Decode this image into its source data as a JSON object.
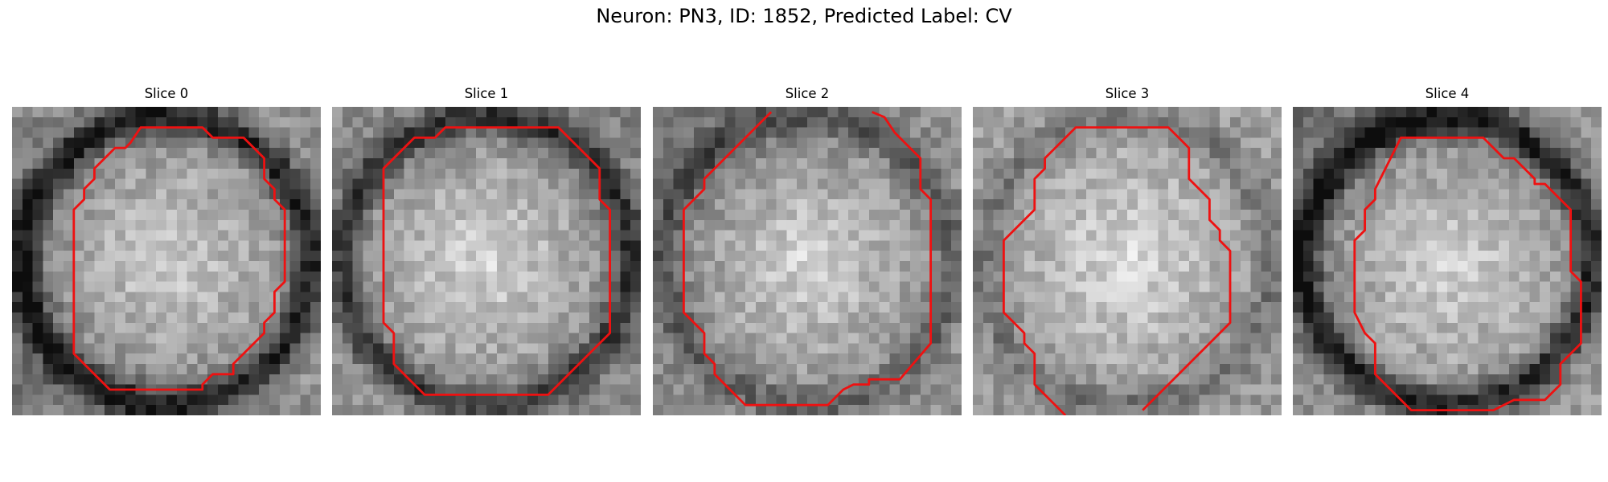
{
  "figure": {
    "title": "Neuron: PN3, ID: 1852, Predicted Label: CV"
  },
  "colors": {
    "contour": "#ee1111"
  },
  "panels": [
    {
      "title": "Slice 0",
      "darkness": {
        "top_left": 0.35,
        "top_right": 0.25,
        "bottom_left": 0.45,
        "bottom_right": 0.25,
        "ring": 0.45,
        "center": 0.1
      },
      "contour": [
        [
          12.5,
          2
        ],
        [
          18.5,
          2
        ],
        [
          19.5,
          3
        ],
        [
          22.5,
          3
        ],
        [
          24.5,
          5
        ],
        [
          24.5,
          7
        ],
        [
          25.5,
          8
        ],
        [
          25.5,
          9
        ],
        [
          26.5,
          10
        ],
        [
          26.5,
          17
        ],
        [
          25.5,
          18
        ],
        [
          25.5,
          20
        ],
        [
          24.5,
          21
        ],
        [
          24.5,
          22
        ],
        [
          21.5,
          25
        ],
        [
          21.5,
          26
        ],
        [
          19.5,
          26
        ],
        [
          18.5,
          27
        ],
        [
          18.5,
          27.5
        ],
        [
          17.5,
          27.5
        ],
        [
          9.5,
          27.5
        ],
        [
          6,
          24
        ],
        [
          6,
          10
        ],
        [
          7,
          9
        ],
        [
          7,
          8
        ],
        [
          8,
          7
        ],
        [
          8,
          6
        ],
        [
          10,
          4
        ],
        [
          11,
          4
        ],
        [
          11.5,
          3.5
        ]
      ],
      "closed": true
    },
    {
      "title": "Slice 1",
      "darkness": {
        "top_left": 0.35,
        "top_right": 0.4,
        "bottom_left": 0.3,
        "bottom_right": 0.35,
        "ring": 0.35,
        "center": 0.05
      },
      "contour": [
        [
          11,
          2
        ],
        [
          22,
          2
        ],
        [
          26,
          6
        ],
        [
          26,
          9
        ],
        [
          27,
          10
        ],
        [
          27,
          22
        ],
        [
          23,
          26
        ],
        [
          22,
          27
        ],
        [
          21,
          28
        ],
        [
          9,
          28
        ],
        [
          6,
          25
        ],
        [
          6,
          22
        ],
        [
          5,
          21
        ],
        [
          5,
          6
        ],
        [
          8,
          3
        ],
        [
          10,
          3
        ]
      ],
      "closed": true
    },
    {
      "title": "Slice 2",
      "darkness": {
        "top_left": 0.55,
        "top_right": 0.3,
        "bottom_left": 0.3,
        "bottom_right": 0.3,
        "ring": 0.2,
        "center": 0.05
      },
      "contour": [
        [
          11.5,
          0.5
        ],
        [
          5,
          7
        ],
        [
          5,
          8
        ],
        [
          3,
          10
        ],
        [
          3,
          20
        ],
        [
          5,
          22
        ],
        [
          5,
          24
        ],
        [
          6,
          25
        ],
        [
          6,
          26
        ],
        [
          9,
          29
        ],
        [
          17,
          29
        ],
        [
          18.5,
          27.5
        ],
        [
          19.5,
          27
        ],
        [
          21,
          27
        ],
        [
          21,
          26.5
        ],
        [
          24,
          26.5
        ],
        [
          27,
          23
        ],
        [
          27,
          9
        ],
        [
          26,
          8
        ],
        [
          26,
          5
        ],
        [
          25,
          4
        ],
        [
          23.5,
          2.5
        ],
        [
          22.5,
          1
        ],
        [
          21.3,
          0.5
        ]
      ],
      "closed": false
    },
    {
      "title": "Slice 3",
      "darkness": {
        "top_left": 0.25,
        "top_right": 0.25,
        "bottom_left": 0.3,
        "bottom_right": 0.3,
        "ring": 0.15,
        "center": 0.02
      },
      "contour": [
        [
          9,
          30
        ],
        [
          6,
          27
        ],
        [
          6,
          24
        ],
        [
          5,
          23
        ],
        [
          5,
          22
        ],
        [
          4,
          21
        ],
        [
          3,
          20
        ],
        [
          3,
          13
        ],
        [
          6,
          10
        ],
        [
          6,
          7
        ],
        [
          7,
          6
        ],
        [
          7,
          5
        ],
        [
          10,
          2
        ],
        [
          19,
          2
        ],
        [
          20,
          3
        ],
        [
          21,
          4
        ],
        [
          21,
          7
        ],
        [
          22,
          8
        ],
        [
          23,
          9
        ],
        [
          23,
          11
        ],
        [
          24,
          12
        ],
        [
          24,
          13
        ],
        [
          25,
          14
        ],
        [
          25,
          21
        ],
        [
          24,
          22
        ],
        [
          21,
          25
        ],
        [
          19,
          27
        ],
        [
          16.5,
          29.5
        ]
      ],
      "closed": false
    },
    {
      "title": "Slice 4",
      "darkness": {
        "top_left": 0.55,
        "top_right": 0.3,
        "bottom_left": 0.3,
        "bottom_right": 0.25,
        "ring": 0.45,
        "center": 0.05
      },
      "contour": [
        [
          10.5,
          3
        ],
        [
          18.5,
          3
        ],
        [
          20.5,
          5
        ],
        [
          21.5,
          5
        ],
        [
          22.5,
          6
        ],
        [
          23.5,
          7
        ],
        [
          23.5,
          7.5
        ],
        [
          24.5,
          7.5
        ],
        [
          26.5,
          9.5
        ],
        [
          27,
          10
        ],
        [
          27,
          16
        ],
        [
          28,
          17
        ],
        [
          28,
          23
        ],
        [
          27,
          24
        ],
        [
          26,
          25
        ],
        [
          26,
          27
        ],
        [
          24.5,
          28.5
        ],
        [
          21.5,
          28.5
        ],
        [
          19.5,
          29.5
        ],
        [
          11.5,
          29.5
        ],
        [
          8,
          26
        ],
        [
          8,
          23
        ],
        [
          7,
          22
        ],
        [
          6,
          20
        ],
        [
          6,
          13
        ],
        [
          7,
          12
        ],
        [
          7,
          10
        ],
        [
          8,
          9
        ],
        [
          8,
          8
        ]
      ],
      "closed": true
    }
  ]
}
